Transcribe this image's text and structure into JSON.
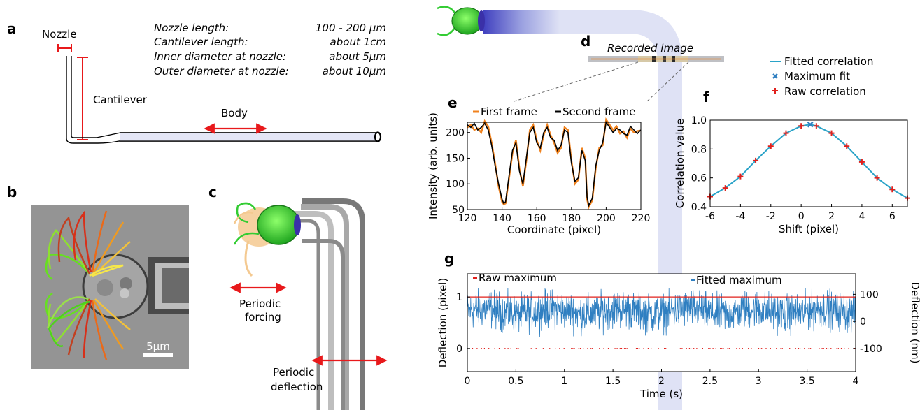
{
  "panels": {
    "a": "a",
    "b": "b",
    "c": "c",
    "d": "d",
    "e": "e",
    "f": "f",
    "g": "g"
  },
  "panel_a": {
    "nozzle_label": "Nozzle",
    "cantilever_label": "Cantilever",
    "body_label": "Body",
    "specs": [
      {
        "name": "Nozzle length:",
        "value": "100 - 200 µm"
      },
      {
        "name": "Cantilever length:",
        "value": "about  1cm"
      },
      {
        "name": "Inner diameter at nozzle:",
        "value": "about  5µm"
      },
      {
        "name": "Outer diameter at nozzle:",
        "value": "about 10µm"
      }
    ]
  },
  "panel_b": {
    "scale_bar": "5µm"
  },
  "panel_c": {
    "forcing": [
      "Periodic",
      "forcing"
    ],
    "deflection": [
      "Periodic",
      "deflection"
    ]
  },
  "panel_d": {
    "title": "Recorded image"
  },
  "colors": {
    "red_arrow": "#e8191b",
    "orange": "#f0821e",
    "blue": "#2f7fc1",
    "teal": "#2aa3c8",
    "green": "#33cc33",
    "cross_red": "#e0201c"
  },
  "chart_data": [
    {
      "type": "line",
      "id": "e",
      "xlabel": "Coordinate (pixel)",
      "ylabel": "Intensity (arb. units)",
      "xlim": [
        120,
        220
      ],
      "ylim": [
        50,
        220
      ],
      "xticks": [
        120,
        140,
        160,
        180,
        200,
        220
      ],
      "yticks": [
        50,
        100,
        150,
        200
      ],
      "series": [
        {
          "name": "First frame",
          "color": "#f0821e",
          "x": [
            120,
            122,
            124,
            126,
            128,
            130,
            132,
            134,
            136,
            138,
            140,
            141,
            142,
            144,
            146,
            148,
            150,
            152,
            154,
            156,
            158,
            160,
            162,
            164,
            166,
            168,
            170,
            172,
            174,
            176,
            178,
            180,
            182,
            184,
            186,
            188,
            189,
            190,
            192,
            194,
            196,
            198,
            200,
            202,
            204,
            206,
            208,
            210,
            212,
            214,
            216,
            218,
            220
          ],
          "y": [
            210,
            215,
            205,
            208,
            200,
            222,
            212,
            180,
            140,
            95,
            65,
            60,
            62,
            110,
            160,
            185,
            130,
            95,
            145,
            205,
            215,
            185,
            165,
            195,
            215,
            195,
            180,
            160,
            170,
            210,
            205,
            145,
            100,
            108,
            170,
            150,
            70,
            55,
            68,
            130,
            170,
            175,
            225,
            215,
            205,
            212,
            198,
            202,
            190,
            208,
            200,
            203,
            204
          ]
        },
        {
          "name": "Second frame",
          "color": "#000000",
          "x": [
            120,
            122,
            124,
            126,
            128,
            130,
            132,
            134,
            136,
            138,
            140,
            141,
            142,
            144,
            146,
            148,
            150,
            152,
            154,
            156,
            158,
            160,
            162,
            164,
            166,
            168,
            170,
            172,
            174,
            176,
            178,
            180,
            182,
            184,
            186,
            188,
            189,
            190,
            192,
            194,
            196,
            198,
            200,
            202,
            204,
            206,
            208,
            210,
            212,
            214,
            216,
            218,
            220
          ],
          "y": [
            215,
            210,
            218,
            205,
            210,
            218,
            205,
            175,
            135,
            100,
            70,
            62,
            65,
            115,
            165,
            180,
            125,
            100,
            150,
            200,
            210,
            180,
            170,
            200,
            210,
            190,
            185,
            165,
            175,
            205,
            200,
            140,
            105,
            112,
            165,
            145,
            75,
            58,
            72,
            135,
            165,
            180,
            220,
            210,
            200,
            208,
            205,
            198,
            195,
            212,
            205,
            198,
            205
          ]
        }
      ]
    },
    {
      "type": "scatter",
      "id": "f",
      "xlabel": "Shift (pixel)",
      "ylabel": "Correlation value",
      "xlim": [
        -6,
        7
      ],
      "ylim": [
        0.4,
        1.0
      ],
      "xticks": [
        -6,
        -4,
        -2,
        0,
        2,
        4,
        6
      ],
      "yticks": [
        0.4,
        0.6,
        0.8,
        1.0
      ],
      "series": [
        {
          "name": "Fitted correlation",
          "color": "#2aa3c8",
          "x": [
            -6,
            -5,
            -4,
            -3,
            -2,
            -1,
            0,
            0.6,
            1,
            2,
            3,
            4,
            5,
            6,
            7
          ],
          "y": [
            0.47,
            0.53,
            0.61,
            0.72,
            0.82,
            0.91,
            0.96,
            0.97,
            0.96,
            0.91,
            0.82,
            0.71,
            0.6,
            0.52,
            0.46
          ]
        },
        {
          "name": "Maximum fit",
          "color": "#2f7fc1",
          "x": [
            0.6
          ],
          "y": [
            0.97
          ]
        },
        {
          "name": "Raw correlation",
          "color": "#e0201c",
          "x": [
            -6,
            -5,
            -4,
            -3,
            -2,
            -1,
            0,
            1,
            2,
            3,
            4,
            5,
            6,
            7
          ],
          "y": [
            0.47,
            0.53,
            0.61,
            0.72,
            0.82,
            0.91,
            0.96,
            0.96,
            0.91,
            0.82,
            0.71,
            0.6,
            0.52,
            0.46
          ]
        }
      ]
    },
    {
      "type": "line",
      "id": "g",
      "xlabel": "Time (s)",
      "ylabel": "Deflection (pixel)",
      "ylabel_right": "Deflection (nm)",
      "xlim": [
        0,
        4
      ],
      "ylim": [
        -0.45,
        1.45
      ],
      "xticks": [
        0,
        0.5,
        1,
        1.5,
        2,
        2.5,
        3,
        3.5,
        4
      ],
      "yticks": [
        0,
        1
      ],
      "yticks_right": [
        -100,
        0,
        100
      ],
      "series": [
        {
          "name": "Raw maximum",
          "color": "#e0201c",
          "levels": [
            0,
            1
          ]
        },
        {
          "name": "Fitted maximum",
          "color": "#2f7fc1",
          "mean": 0.72,
          "spread": 0.18
        }
      ]
    }
  ]
}
